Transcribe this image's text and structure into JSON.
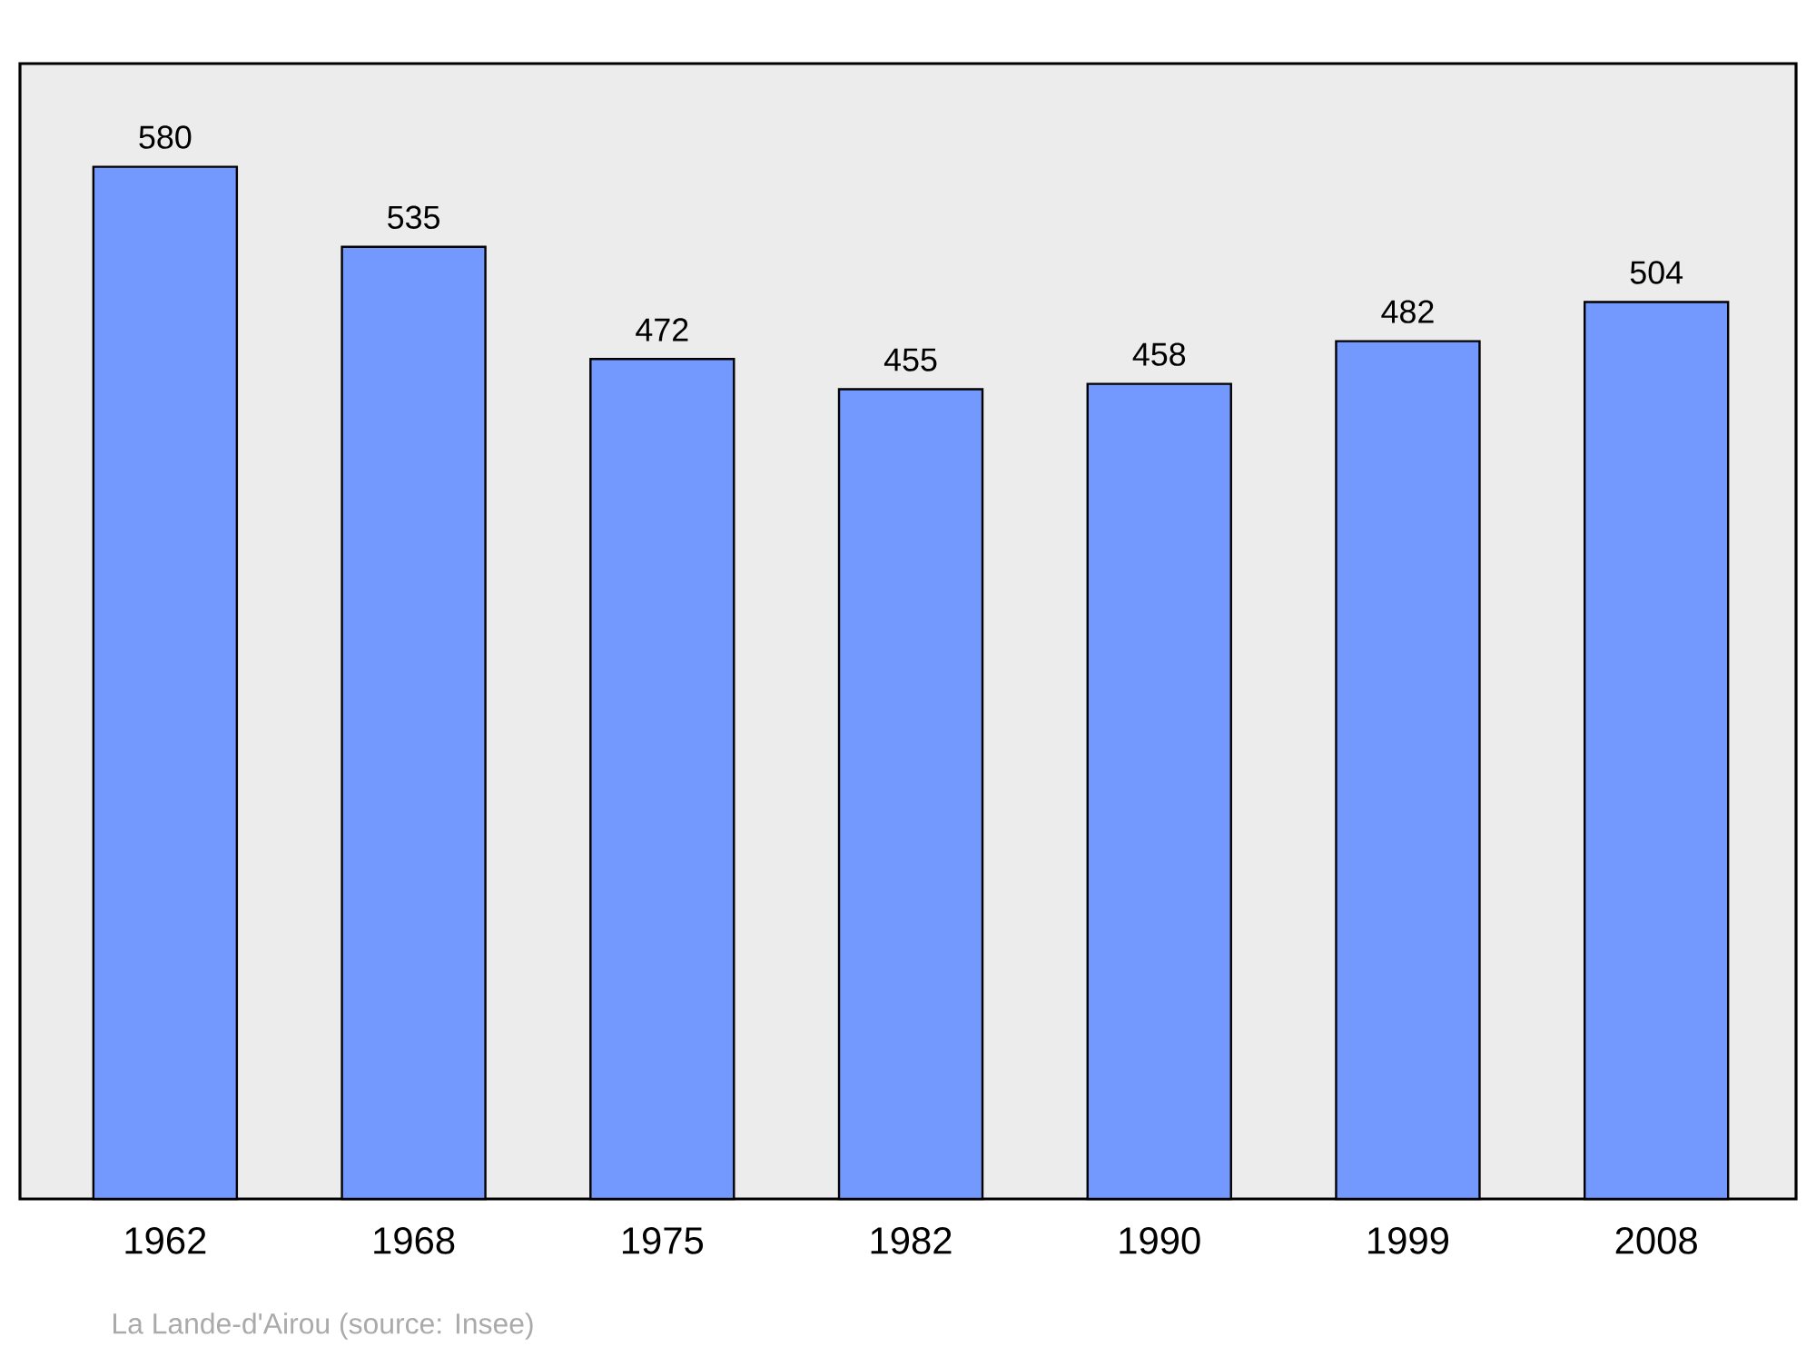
{
  "chart_data": {
    "type": "bar",
    "categories": [
      "1962",
      "1968",
      "1975",
      "1982",
      "1990",
      "1999",
      "2008"
    ],
    "values": [
      580,
      535,
      472,
      455,
      458,
      482,
      504
    ],
    "color": "#7399ff",
    "data_labels": true,
    "annotations": [
      "La Lande-d'Airou    (source: Insee)"
    ]
  }
}
